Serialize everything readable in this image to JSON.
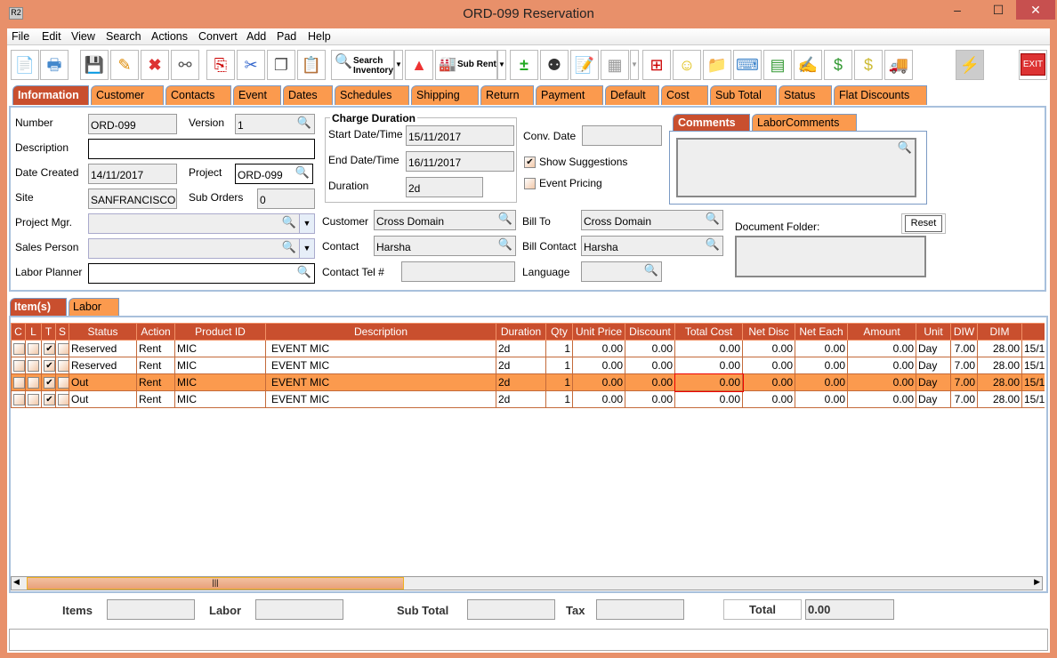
{
  "window": {
    "title": "ORD-099 Reservation",
    "app_icon": "R2",
    "minimize": "–",
    "maximize": "☐",
    "close": "✕"
  },
  "menu": [
    "File",
    "Edit",
    "View",
    "Search",
    "Actions",
    "Convert",
    "Add",
    "Pad",
    "Help"
  ],
  "toolbar": {
    "search_inventory": "Search Inventory",
    "sub_rent": "Sub Rent",
    "exit": "EXIT"
  },
  "tabs": [
    "Information",
    "Customer",
    "Contacts",
    "Event",
    "Dates",
    "Schedules",
    "Shipping",
    "Return",
    "Payment",
    "Default",
    "Cost",
    "Sub Total",
    "Status",
    "Flat Discounts"
  ],
  "info": {
    "number_label": "Number",
    "number": "ORD-099",
    "version_label": "Version",
    "version": "1",
    "description_label": "Description",
    "description": "",
    "date_created_label": "Date Created",
    "date_created": "14/11/2017",
    "project_label": "Project",
    "project": "ORD-099",
    "site_label": "Site",
    "site": "SANFRANCISCO",
    "sub_orders_label": "Sub Orders",
    "sub_orders": "0",
    "project_mgr_label": "Project Mgr.",
    "project_mgr": "",
    "sales_person_label": "Sales Person",
    "sales_person": "",
    "labor_planner_label": "Labor Planner",
    "labor_planner": "",
    "charge_duration_title": "Charge Duration",
    "start_label": "Start Date/Time",
    "start": "15/11/2017",
    "end_label": "End Date/Time",
    "end": "16/11/2017",
    "duration_label": "Duration",
    "duration": "2d",
    "conv_date_label": "Conv. Date",
    "conv_date": "",
    "show_suggestions_label": "Show Suggestions",
    "show_suggestions": true,
    "event_pricing_label": "Event Pricing",
    "event_pricing": false,
    "customer_label": "Customer",
    "customer": "Cross Domain",
    "contact_label": "Contact",
    "contact": "Harsha",
    "contact_tel_label": "Contact Tel #",
    "contact_tel": "",
    "bill_to_label": "Bill To",
    "bill_to": "Cross Domain",
    "bill_contact_label": "Bill Contact",
    "bill_contact": "Harsha",
    "language_label": "Language",
    "language": "",
    "comment_tabs": [
      "Comments",
      "LaborComments"
    ],
    "comments": "",
    "document_folder_label": "Document Folder:",
    "reset": "Reset"
  },
  "item_tabs": [
    "Item(s)",
    "Labor"
  ],
  "table": {
    "columns": [
      "C",
      "L",
      "T",
      "S",
      "Status",
      "Action",
      "Product ID",
      "Description",
      "Duration",
      "Qty",
      "Unit Price",
      "Discount",
      "Total Cost",
      "Net Disc",
      "Net Each",
      "Amount",
      "Unit",
      "DIW",
      "DIM",
      ""
    ],
    "rows": [
      {
        "c": false,
        "l": false,
        "t": true,
        "s": false,
        "cells": [
          "Reserved",
          "Rent",
          "MIC",
          "EVENT MIC",
          "2d",
          "1",
          "0.00",
          "0.00",
          "0.00",
          "0.00",
          "0.00",
          "0.00",
          "Day",
          "7.00",
          "28.00",
          "15/1"
        ],
        "selected": false
      },
      {
        "c": false,
        "l": false,
        "t": true,
        "s": false,
        "cells": [
          "Reserved",
          "Rent",
          "MIC",
          "EVENT MIC",
          "2d",
          "1",
          "0.00",
          "0.00",
          "0.00",
          "0.00",
          "0.00",
          "0.00",
          "Day",
          "7.00",
          "28.00",
          "15/1"
        ],
        "selected": false
      },
      {
        "c": false,
        "l": false,
        "t": true,
        "s": false,
        "cells": [
          "Out",
          "Rent",
          "MIC",
          "EVENT MIC",
          "2d",
          "1",
          "0.00",
          "0.00",
          "0.00",
          "0.00",
          "0.00",
          "0.00",
          "Day",
          "7.00",
          "28.00",
          "15/1"
        ],
        "selected": true
      },
      {
        "c": false,
        "l": false,
        "t": true,
        "s": false,
        "cells": [
          "Out",
          "Rent",
          "MIC",
          "EVENT MIC",
          "2d",
          "1",
          "0.00",
          "0.00",
          "0.00",
          "0.00",
          "0.00",
          "0.00",
          "Day",
          "7.00",
          "28.00",
          "15/1"
        ],
        "selected": false
      }
    ]
  },
  "totals": {
    "items_label": "Items",
    "items": "",
    "labor_label": "Labor",
    "labor": "",
    "sub_total_label": "Sub Total",
    "sub_total": "",
    "tax_label": "Tax",
    "tax": "",
    "total_label": "Total",
    "total": "0.00"
  },
  "status_bar": "",
  "colors": {
    "accent": "#c94f2e",
    "tab": "#fb9a4e",
    "frame": "#e8906a"
  }
}
